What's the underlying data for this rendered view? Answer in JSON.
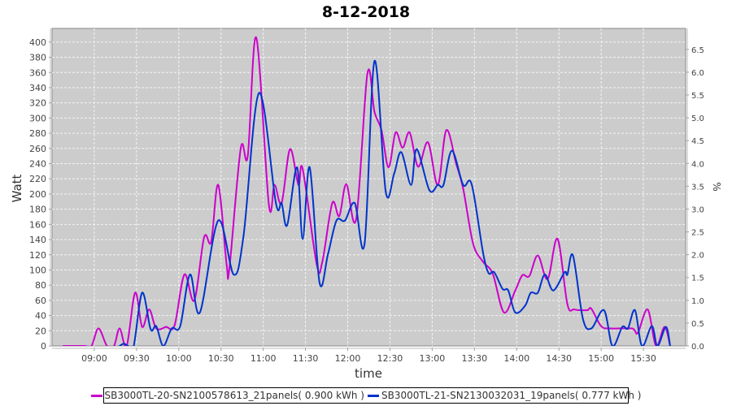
{
  "chart_data": {
    "type": "line",
    "title": "8-12-2018",
    "xlabel": "time",
    "ylabel": "Watt",
    "y2label": "%",
    "xlim": [
      "08:30",
      "16:00"
    ],
    "ylim": [
      0,
      418
    ],
    "y2lim": [
      0,
      6.96
    ],
    "grid": true,
    "legend_position": "bottom",
    "xticks": [
      "09:00",
      "09:30",
      "10:00",
      "10:30",
      "11:00",
      "11:30",
      "12:00",
      "12:30",
      "13:00",
      "13:30",
      "14:00",
      "14:30",
      "15:00",
      "15:30"
    ],
    "yticks": [
      0,
      20,
      40,
      60,
      80,
      100,
      120,
      140,
      160,
      180,
      200,
      220,
      240,
      260,
      280,
      300,
      320,
      340,
      360,
      380,
      400
    ],
    "y2ticks": [
      "0.0",
      "0.5",
      "1.0",
      "1.5",
      "2.0",
      "2.5",
      "3.0",
      "3.5",
      "4.0",
      "4.5",
      "5.0",
      "5.5",
      "6.0",
      "6.5"
    ],
    "series": [
      {
        "name": "SB3000TL-20-SN2100578613_21panels( 0.900 kWh )",
        "color": "#cc00cc",
        "points": [
          [
            "08:38",
            0
          ],
          [
            "08:53",
            0
          ],
          [
            "08:58",
            0
          ],
          [
            "09:03",
            23
          ],
          [
            "09:09",
            0
          ],
          [
            "09:14",
            0
          ],
          [
            "09:18",
            23
          ],
          [
            "09:23",
            0
          ],
          [
            "09:29",
            70
          ],
          [
            "09:34",
            25
          ],
          [
            "09:39",
            48
          ],
          [
            "09:44",
            23
          ],
          [
            "09:51",
            25
          ],
          [
            "09:57",
            27
          ],
          [
            "10:04",
            94
          ],
          [
            "10:11",
            60
          ],
          [
            "10:18",
            143
          ],
          [
            "10:23",
            137
          ],
          [
            "10:28",
            212
          ],
          [
            "10:34",
            107
          ],
          [
            "10:36",
            103
          ],
          [
            "10:44",
            260
          ],
          [
            "10:49",
            250
          ],
          [
            "10:55",
            406
          ],
          [
            "11:04",
            186
          ],
          [
            "11:08",
            212
          ],
          [
            "11:13",
            188
          ],
          [
            "11:19",
            259
          ],
          [
            "11:25",
            212
          ],
          [
            "11:28",
            233
          ],
          [
            "11:38",
            107
          ],
          [
            "11:42",
            111
          ],
          [
            "11:49",
            188
          ],
          [
            "11:54",
            171
          ],
          [
            "11:59",
            213
          ],
          [
            "12:06",
            167
          ],
          [
            "12:14",
            359
          ],
          [
            "12:19",
            308
          ],
          [
            "12:24",
            284
          ],
          [
            "12:29",
            235
          ],
          [
            "12:34",
            281
          ],
          [
            "12:39",
            261
          ],
          [
            "12:44",
            281
          ],
          [
            "12:50",
            236
          ],
          [
            "12:57",
            268
          ],
          [
            "13:04",
            212
          ],
          [
            "13:10",
            284
          ],
          [
            "13:17",
            240
          ],
          [
            "13:22",
            207
          ],
          [
            "13:29",
            135
          ],
          [
            "13:36",
            111
          ],
          [
            "13:43",
            95
          ],
          [
            "13:51",
            44
          ],
          [
            "13:59",
            73
          ],
          [
            "14:04",
            93
          ],
          [
            "14:09",
            92
          ],
          [
            "14:15",
            119
          ],
          [
            "14:22",
            88
          ],
          [
            "14:29",
            141
          ],
          [
            "14:36",
            55
          ],
          [
            "14:41",
            48
          ],
          [
            "14:50",
            47
          ],
          [
            "14:53",
            49
          ],
          [
            "15:00",
            26
          ],
          [
            "15:07",
            23
          ],
          [
            "15:22",
            23
          ],
          [
            "15:26",
            17
          ],
          [
            "15:33",
            48
          ],
          [
            "15:39",
            0
          ],
          [
            "15:45",
            25
          ],
          [
            "15:49",
            0
          ]
        ]
      },
      {
        "name": "SB3000TL-21-SN2130032031_19panels( 0.777 kWh )",
        "color": "#0033cc",
        "points": [
          [
            "09:18",
            0
          ],
          [
            "09:21",
            3
          ],
          [
            "09:24",
            0
          ],
          [
            "09:28",
            0
          ],
          [
            "09:34",
            70
          ],
          [
            "09:40",
            22
          ],
          [
            "09:44",
            26
          ],
          [
            "09:49",
            0
          ],
          [
            "09:55",
            23
          ],
          [
            "10:01",
            26
          ],
          [
            "10:08",
            94
          ],
          [
            "10:15",
            44
          ],
          [
            "10:28",
            165
          ],
          [
            "10:39",
            94
          ],
          [
            "10:46",
            145
          ],
          [
            "10:57",
            333
          ],
          [
            "11:09",
            188
          ],
          [
            "11:13",
            188
          ],
          [
            "11:17",
            159
          ],
          [
            "11:24",
            235
          ],
          [
            "11:28",
            141
          ],
          [
            "11:33",
            235
          ],
          [
            "11:40",
            83
          ],
          [
            "11:46",
            121
          ],
          [
            "11:52",
            165
          ],
          [
            "11:58",
            165
          ],
          [
            "12:05",
            188
          ],
          [
            "12:12",
            135
          ],
          [
            "12:19",
            375
          ],
          [
            "12:27",
            203
          ],
          [
            "12:33",
            227
          ],
          [
            "12:38",
            255
          ],
          [
            "12:45",
            212
          ],
          [
            "12:49",
            259
          ],
          [
            "12:58",
            205
          ],
          [
            "13:04",
            212
          ],
          [
            "13:08",
            212
          ],
          [
            "13:14",
            257
          ],
          [
            "13:22",
            212
          ],
          [
            "13:28",
            213
          ],
          [
            "13:36",
            124
          ],
          [
            "13:40",
            96
          ],
          [
            "13:44",
            97
          ],
          [
            "13:50",
            75
          ],
          [
            "13:54",
            73
          ],
          [
            "13:59",
            44
          ],
          [
            "14:06",
            53
          ],
          [
            "14:10",
            70
          ],
          [
            "14:15",
            70
          ],
          [
            "14:20",
            94
          ],
          [
            "14:26",
            73
          ],
          [
            "14:34",
            97
          ],
          [
            "14:36",
            94
          ],
          [
            "14:40",
            119
          ],
          [
            "14:47",
            36
          ],
          [
            "14:53",
            23
          ],
          [
            "15:02",
            47
          ],
          [
            "15:08",
            0
          ],
          [
            "15:15",
            25
          ],
          [
            "15:19",
            23
          ],
          [
            "15:24",
            47
          ],
          [
            "15:29",
            0
          ],
          [
            "15:36",
            26
          ],
          [
            "15:40",
            0
          ],
          [
            "15:46",
            25
          ],
          [
            "15:49",
            0
          ]
        ]
      }
    ]
  }
}
